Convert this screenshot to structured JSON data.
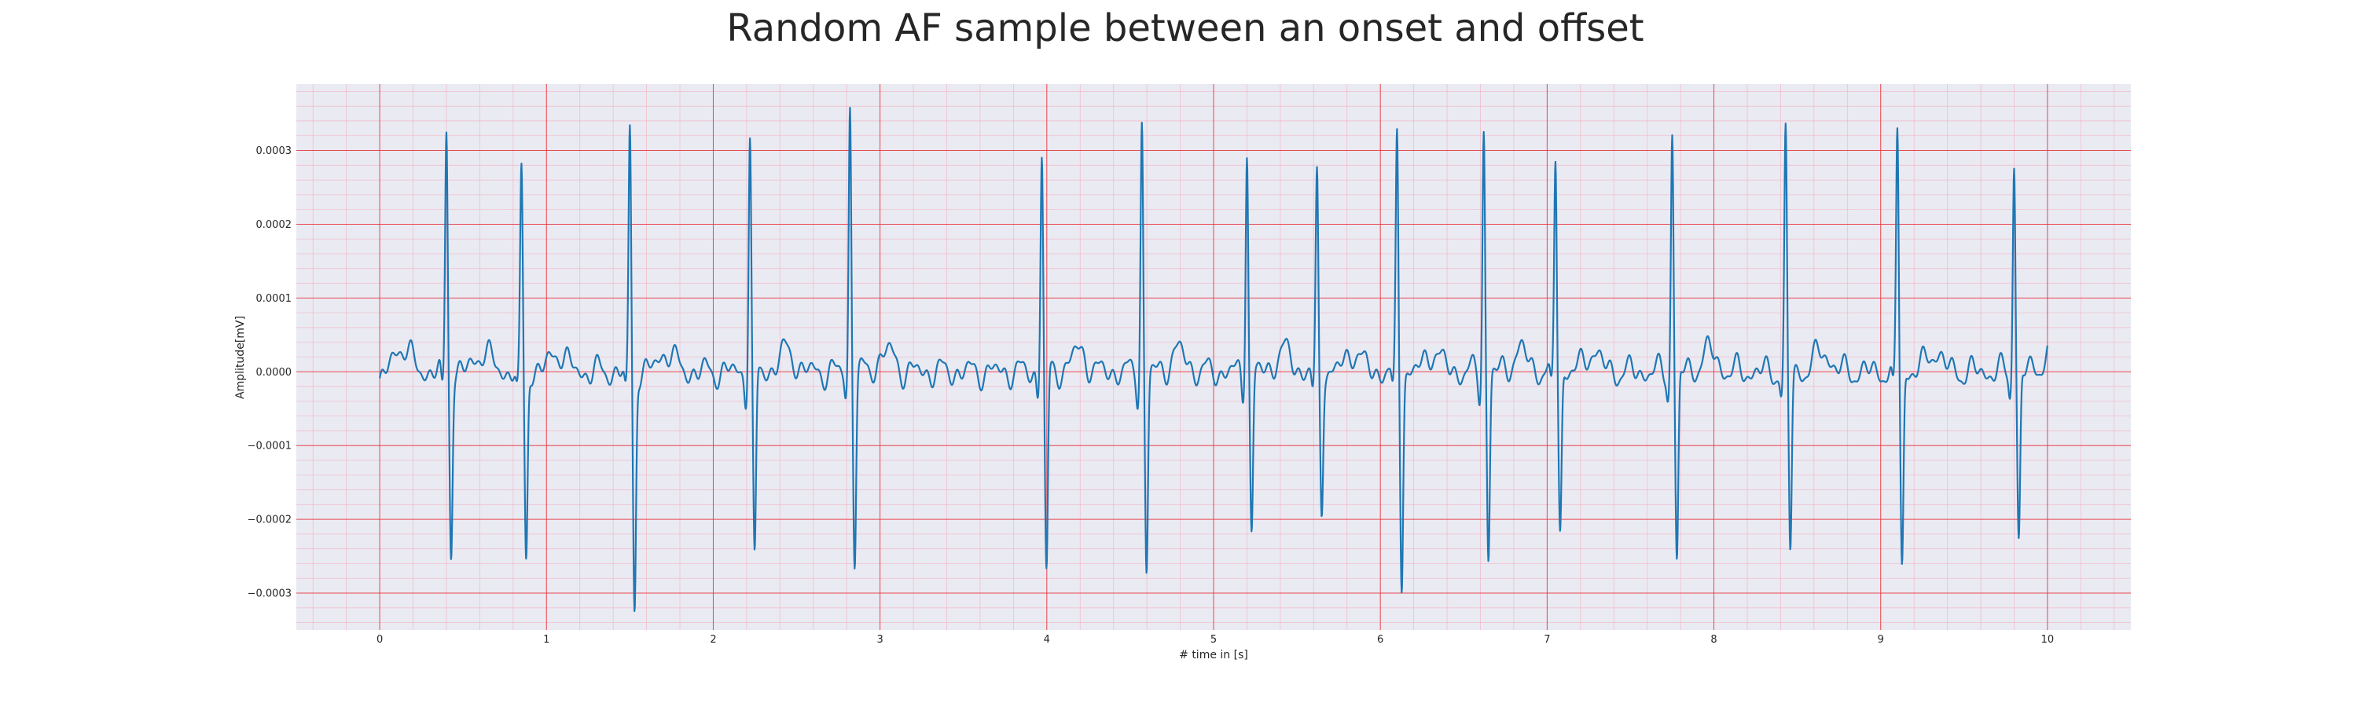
{
  "chart_data": {
    "type": "line",
    "title": "Random AF sample between an onset and offset",
    "xlabel": "# time in [s]",
    "ylabel": "Amplitude[mV]",
    "xlim": [
      -0.5,
      10.5
    ],
    "ylim": [
      -0.00035,
      0.00039
    ],
    "x_ticks": [
      0,
      1,
      2,
      3,
      4,
      5,
      6,
      7,
      8,
      9,
      10
    ],
    "y_ticks": [
      -0.0003,
      -0.0002,
      -0.0001,
      0.0,
      0.0001,
      0.0002,
      0.0003
    ],
    "y_tick_labels": [
      "−0.0003",
      "−0.0002",
      "−0.0001",
      "0.0000",
      "0.0001",
      "0.0002",
      "0.0003"
    ],
    "x_tick_labels": [
      "0",
      "1",
      "2",
      "3",
      "4",
      "5",
      "6",
      "7",
      "8",
      "9",
      "10"
    ],
    "grid": true,
    "minor_grid": true,
    "series": [
      {
        "color": "#1f77b4",
        "qrs_beats": [
          {
            "t": 0.4,
            "r": 0.00033,
            "s": -0.00024
          },
          {
            "t": 0.85,
            "r": 0.00027,
            "s": -0.00025
          },
          {
            "t": 1.5,
            "r": 0.00033,
            "s": -0.00032
          },
          {
            "t": 2.22,
            "r": 0.00032,
            "s": -0.00026
          },
          {
            "t": 2.82,
            "r": 0.00036,
            "s": -0.00025
          },
          {
            "t": 3.97,
            "r": 0.0003,
            "s": -0.00028
          },
          {
            "t": 4.57,
            "r": 0.00034,
            "s": -0.00027
          },
          {
            "t": 5.2,
            "r": 0.00031,
            "s": -0.00022
          },
          {
            "t": 5.62,
            "r": 0.00026,
            "s": -0.00018
          },
          {
            "t": 6.1,
            "r": 0.00032,
            "s": -0.00028
          },
          {
            "t": 6.62,
            "r": 0.00033,
            "s": -0.00025
          },
          {
            "t": 7.05,
            "r": 0.00029,
            "s": -0.00021
          },
          {
            "t": 7.75,
            "r": 0.00033,
            "s": -0.00026
          },
          {
            "t": 8.43,
            "r": 0.00032,
            "s": -0.00024
          },
          {
            "t": 9.1,
            "r": 0.00033,
            "s": -0.00026
          },
          {
            "t": 9.8,
            "r": 0.00029,
            "s": -0.00023
          }
        ]
      }
    ]
  }
}
